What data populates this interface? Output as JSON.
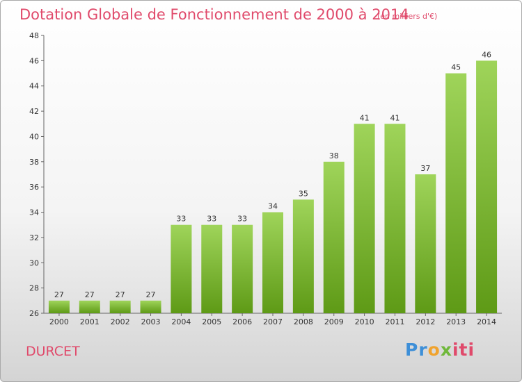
{
  "title": "Dotation Globale de Fonctionnement de 2000 à 2014",
  "subtitle": "(en milliers d'€)",
  "commune": "DURCET",
  "logo": {
    "p1": "Pr",
    "p2": "o",
    "p3": "x",
    "p4": "iti"
  },
  "colors": {
    "title": "#e04a6b",
    "bar_top": "#9fd45a",
    "bar_bottom": "#5e9a16"
  },
  "chart_data": {
    "type": "bar",
    "categories": [
      "2000",
      "2001",
      "2002",
      "2003",
      "2004",
      "2005",
      "2006",
      "2007",
      "2008",
      "2009",
      "2010",
      "2011",
      "2012",
      "2013",
      "2014"
    ],
    "values": [
      27,
      27,
      27,
      27,
      33,
      33,
      33,
      34,
      35,
      38,
      41,
      41,
      37,
      45,
      46
    ],
    "title": "Dotation Globale de Fonctionnement de 2000 à 2014",
    "subtitle": "(en milliers d'€)",
    "ylim": [
      26,
      48
    ],
    "yticks": [
      26,
      28,
      30,
      32,
      34,
      36,
      38,
      40,
      42,
      44,
      46,
      48
    ],
    "grid": false,
    "legend": "none"
  }
}
